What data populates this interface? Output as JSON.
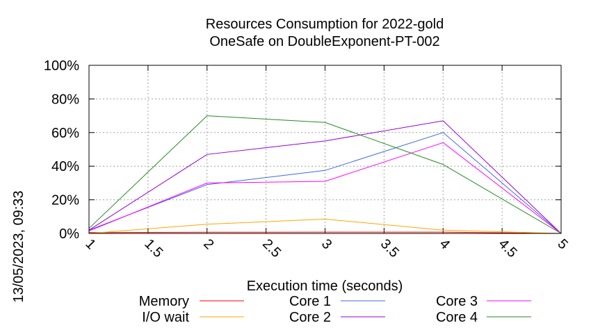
{
  "chart_data": {
    "type": "line",
    "title": "Resources Consumption for 2022-gold",
    "subtitle": "OneSafe on DoubleExponent-PT-002",
    "xlabel": "Execution time (seconds)",
    "ylabel": "",
    "xlim": [
      1,
      5
    ],
    "ylim": [
      0,
      100
    ],
    "x_ticks": [
      "1",
      "1.5",
      "2",
      "2.5",
      "3",
      "3.5",
      "4",
      "4.5",
      "5"
    ],
    "x_tick_values": [
      1,
      1.5,
      2,
      2.5,
      3,
      3.5,
      4,
      4.5,
      5
    ],
    "y_ticks": [
      "0%",
      "20%",
      "40%",
      "60%",
      "80%",
      "100%"
    ],
    "y_tick_values": [
      0,
      20,
      40,
      60,
      80,
      100
    ],
    "grid": true,
    "legend_position": "bottom",
    "timestamp": "13/05/2023, 09:33",
    "x": [
      1,
      2,
      3,
      4,
      5
    ],
    "series": [
      {
        "name": "Memory",
        "color": "#ff0000",
        "values": [
          0.5,
          0.7,
          0.8,
          0.8,
          0
        ]
      },
      {
        "name": "I/O wait",
        "color": "#ffa500",
        "values": [
          0,
          5.5,
          8.5,
          2,
          0
        ]
      },
      {
        "name": "Core 1",
        "color": "#4169e1",
        "values": [
          2,
          29,
          37.5,
          60,
          0
        ]
      },
      {
        "name": "Core 2",
        "color": "#9400d3",
        "values": [
          2,
          47,
          55,
          67,
          0
        ]
      },
      {
        "name": "Core 3",
        "color": "#ff00ff",
        "values": [
          1.5,
          30,
          31,
          54,
          0
        ]
      },
      {
        "name": "Core 4",
        "color": "#228b22",
        "values": [
          3,
          70,
          66,
          41,
          0
        ]
      }
    ]
  }
}
